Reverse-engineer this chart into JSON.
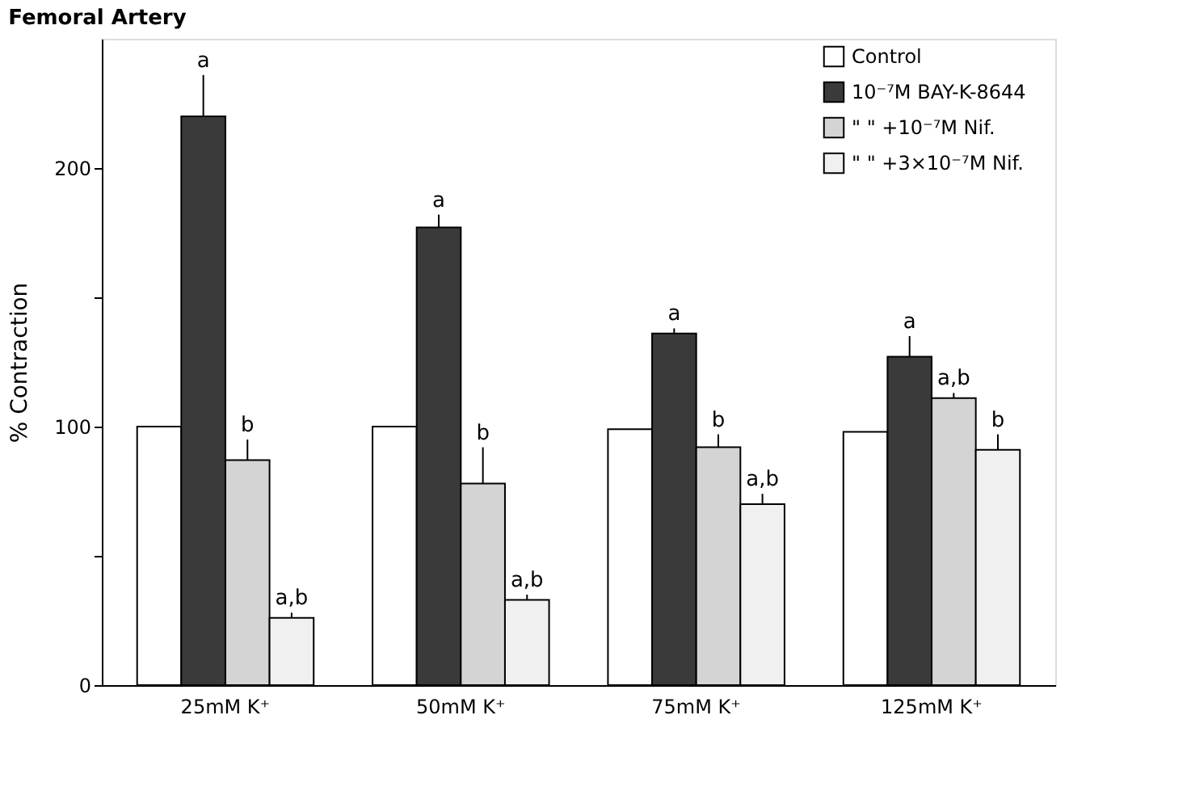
{
  "chart_data": {
    "type": "bar",
    "title": "Femoral Artery",
    "ylabel": "% Contraction",
    "categories": [
      "25mM K⁺",
      "50mM K⁺",
      "75mM K⁺",
      "125mM K⁺"
    ],
    "series": [
      {
        "name": "Control",
        "color": "#ffffff",
        "values": [
          100,
          100,
          99,
          98
        ]
      },
      {
        "name": "10⁻⁷M BAY-K-8644",
        "color": "#3a3a3a",
        "values": [
          220,
          177,
          136,
          127
        ],
        "errors": [
          [
            220,
            236
          ],
          [
            177,
            182
          ],
          [
            136,
            138
          ],
          [
            127,
            135
          ]
        ]
      },
      {
        "name": "\"   \"   +10⁻⁷M Nif.",
        "color": "#d4d4d4",
        "values": [
          87,
          78,
          92,
          111
        ],
        "errors": [
          [
            87,
            95
          ],
          [
            78,
            92
          ],
          [
            92,
            97
          ],
          [
            111,
            113
          ]
        ]
      },
      {
        "name": "\"   \"   +3×10⁻⁷M Nif.",
        "color": "#f0f0f0",
        "values": [
          26,
          33,
          70,
          91
        ],
        "errors": [
          [
            26,
            28
          ],
          [
            33,
            35
          ],
          [
            70,
            74
          ],
          [
            91,
            97
          ]
        ]
      }
    ],
    "annotations": [
      {
        "text": "a",
        "x": "25mM K⁺",
        "y": 220
      },
      {
        "text": "b",
        "x": "25mM K⁺",
        "y": 87
      },
      {
        "text": "a,b",
        "x": "25mM K⁺",
        "y": 26
      },
      {
        "text": "a",
        "x": "50mM K⁺",
        "y": 177
      },
      {
        "text": "b",
        "x": "50mM K⁺",
        "y": 78
      },
      {
        "text": "a,b",
        "x": "50mM K⁺",
        "y": 33
      },
      {
        "text": "a",
        "x": "75mM K⁺",
        "y": 136
      },
      {
        "text": "b",
        "x": "75mM K⁺",
        "y": 92
      },
      {
        "text": "a,b",
        "x": "75mM K⁺",
        "y": 70
      },
      {
        "text": "a",
        "x": "125mM K⁺",
        "y": 127
      },
      {
        "text": "a,b",
        "x": "125mM K⁺",
        "y": 111
      },
      {
        "text": "b",
        "x": "125mM K⁺",
        "y": 91
      }
    ],
    "ylim": [
      0,
      250
    ],
    "yticks": [
      0,
      {
        "value": 50,
        "label": null
      },
      100,
      {
        "value": 150,
        "label": null
      },
      200
    ],
    "grid": false,
    "legend": "top right"
  }
}
